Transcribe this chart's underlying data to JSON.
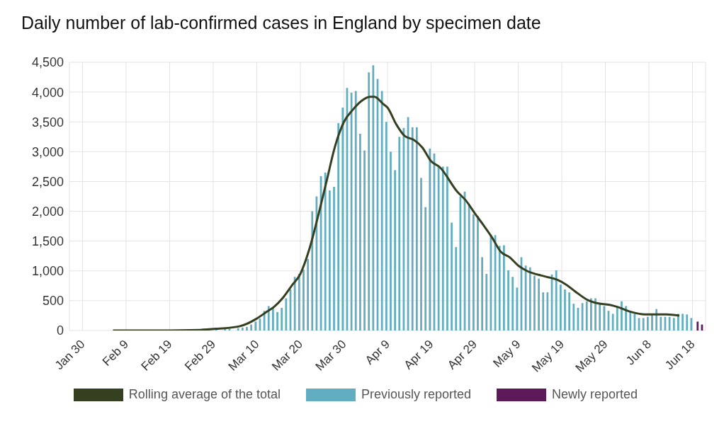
{
  "chart_data": {
    "type": "bar",
    "title": "Daily number of lab-confirmed cases in England by specimen date",
    "x": [
      "--03-01",
      "--03-02",
      "--03-03",
      "--03-04",
      "--03-05",
      "--03-06",
      "--03-07",
      "--03-08",
      "--03-09",
      "--03-10",
      "--03-11",
      "--03-12",
      "--03-13",
      "--03-14",
      "--03-15",
      "--03-16",
      "--03-17",
      "--03-18",
      "--03-19",
      "--03-20",
      "--03-21",
      "--03-22",
      "--03-23",
      "--03-24",
      "--03-25",
      "--03-26",
      "--03-27",
      "--03-28",
      "--03-29",
      "--03-30",
      "--03-31",
      "--04-01",
      "--04-02",
      "--04-03",
      "--04-04",
      "--04-05",
      "--04-06",
      "--04-07",
      "--04-08",
      "--04-09",
      "--04-10",
      "--04-11",
      "--04-12",
      "--04-13",
      "--04-14",
      "--04-15",
      "--04-16",
      "--04-17",
      "--04-18",
      "--04-19",
      "--04-20",
      "--04-21",
      "--04-22",
      "--04-23",
      "--04-24",
      "--04-25",
      "--04-26",
      "--04-27",
      "--04-28",
      "--04-29",
      "--04-30",
      "--05-01",
      "--05-02",
      "--05-03",
      "--05-04",
      "--05-05",
      "--05-06",
      "--05-07",
      "--05-08",
      "--05-09",
      "--05-10",
      "--05-11",
      "--05-12",
      "--05-13",
      "--05-14",
      "--05-15",
      "--05-16",
      "--05-17",
      "--05-18",
      "--05-19",
      "--05-20",
      "--05-21",
      "--05-22",
      "--05-23",
      "--05-24",
      "--05-25",
      "--05-26",
      "--05-27",
      "--05-28",
      "--05-29",
      "--05-30",
      "--05-31",
      "--06-01",
      "--06-02",
      "--06-03",
      "--06-04",
      "--06-05",
      "--06-06",
      "--06-07",
      "--06-08",
      "--06-09",
      "--06-10",
      "--06-11",
      "--06-12",
      "--06-13",
      "--06-14",
      "--06-15",
      "--06-16",
      "--06-17",
      "--06-18"
    ],
    "series": [
      {
        "name": "Rolling average of the total",
        "type": "line",
        "color": "#34401f",
        "x": [
          "--02-06",
          "--02-16",
          "--02-26",
          "--03-01",
          "--03-06",
          "--03-10",
          "--03-12",
          "--03-14",
          "--03-16",
          "--03-18",
          "--03-20",
          "--03-22",
          "--03-24",
          "--03-26",
          "--03-28",
          "--03-30",
          "--04-01",
          "--04-03",
          "--04-05",
          "--04-06",
          "--04-08",
          "--04-09",
          "--04-11",
          "--04-13",
          "--04-15",
          "--04-17",
          "--04-19",
          "--04-21",
          "--04-25",
          "--04-27",
          "--04-29",
          "--05-01",
          "--05-03",
          "--05-05",
          "--05-07",
          "--05-09",
          "--05-11",
          "--05-15",
          "--05-18",
          "--05-20",
          "--05-22",
          "--05-25",
          "--05-27",
          "--05-30",
          "--06-01",
          "--06-04",
          "--06-07",
          "--06-10",
          "--06-12",
          "--06-15"
        ],
        "values": [
          0,
          0,
          10,
          30,
          70,
          200,
          300,
          400,
          550,
          750,
          950,
          1350,
          1900,
          2500,
          3100,
          3500,
          3700,
          3850,
          3920,
          3920,
          3800,
          3740,
          3460,
          3260,
          3200,
          3070,
          2840,
          2740,
          2330,
          2180,
          1970,
          1770,
          1560,
          1320,
          1230,
          1090,
          1000,
          910,
          850,
          770,
          660,
          510,
          460,
          430,
          390,
          310,
          270,
          270,
          270,
          250
        ]
      },
      {
        "name": "Previously reported",
        "color": "#62adbf",
        "values": [
          20,
          null,
          40,
          30,
          null,
          40,
          50,
          60,
          100,
          150,
          200,
          330,
          410,
          380,
          310,
          380,
          540,
          690,
          900,
          950,
          1020,
          1200,
          2000,
          2250,
          2590,
          2650,
          2350,
          2410,
          3480,
          3740,
          4070,
          3990,
          4020,
          3300,
          3020,
          4330,
          4450,
          4220,
          4020,
          3500,
          3000,
          2690,
          3250,
          3400,
          3580,
          3410,
          3410,
          2560,
          2070,
          3050,
          2970,
          2740,
          2750,
          2750,
          1810,
          1400,
          2250,
          2330,
          2120,
          1950,
          1920,
          1230,
          950,
          1610,
          1600,
          1420,
          1430,
          1010,
          900,
          720,
          1230,
          1090,
          1060,
          920,
          870,
          640,
          640,
          940,
          1010,
          770,
          690,
          640,
          450,
          380,
          460,
          490,
          540,
          540,
          440,
          410,
          330,
          280,
          410,
          490,
          410,
          320,
          280,
          210,
          210,
          230,
          260,
          360,
          230,
          230,
          230,
          210,
          280,
          280,
          270,
          210
        ]
      },
      {
        "name": "Newly reported",
        "color": "#5c1a5a",
        "x": [
          "--06-19",
          "--06-20"
        ],
        "values": [
          150,
          100
        ]
      }
    ],
    "xlim": [
      "--01-27",
      "--06-21"
    ],
    "xticks": [
      {
        "value": "--01-30",
        "label": "Jan 30"
      },
      {
        "value": "--02-09",
        "label": "Feb 9"
      },
      {
        "value": "--02-19",
        "label": "Feb 19"
      },
      {
        "value": "--02-29",
        "label": "Feb 29"
      },
      {
        "value": "--03-10",
        "label": "Mar 10"
      },
      {
        "value": "--03-20",
        "label": "Mar 20"
      },
      {
        "value": "--03-30",
        "label": "Mar 30"
      },
      {
        "value": "--04-09",
        "label": "Apr 9"
      },
      {
        "value": "--04-19",
        "label": "Apr 19"
      },
      {
        "value": "--04-29",
        "label": "Apr 29"
      },
      {
        "value": "--05-09",
        "label": "May 9"
      },
      {
        "value": "--05-19",
        "label": "May 19"
      },
      {
        "value": "--05-29",
        "label": "May 29"
      },
      {
        "value": "--06-08",
        "label": "Jun 8"
      },
      {
        "value": "--06-18",
        "label": "Jun 18"
      }
    ],
    "ylim": [
      0,
      4500
    ],
    "yticks": [
      0,
      500,
      {
        "value": 1000,
        "label": "1,000"
      },
      {
        "value": 1500,
        "label": "1,500"
      },
      {
        "value": 2000,
        "label": "2,000"
      },
      {
        "value": 2500,
        "label": "2,500"
      },
      {
        "value": 3000,
        "label": "3,000"
      },
      {
        "value": 3500,
        "label": "3,500"
      },
      {
        "value": 4000,
        "label": "4,000"
      },
      {
        "value": 4500,
        "label": "4,500"
      }
    ],
    "grid": true,
    "legend": "bottom"
  }
}
